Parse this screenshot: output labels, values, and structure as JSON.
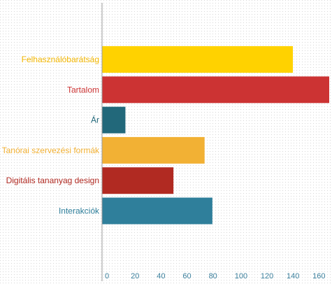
{
  "chart_data": {
    "type": "bar",
    "orientation": "horizontal",
    "categories": [
      "Felhasználóbarátság",
      "Tartalom",
      "Ár",
      "Tanórai szervezési formák",
      "Digitális tananyag design",
      "Interakciók"
    ],
    "values": [
      147,
      175,
      18,
      79,
      55,
      85
    ],
    "colors": [
      "#FFD200",
      "#CC3333",
      "#22687A",
      "#F2B134",
      "#B12A22",
      "#2F7F9B"
    ],
    "label_colors": [
      "#F2B600",
      "#CC3333",
      "#22687A",
      "#F2B134",
      "#B12A22",
      "#2F7F9B"
    ],
    "xlim": [
      0,
      175
    ],
    "xticks": [
      0,
      20,
      40,
      60,
      80,
      100,
      120,
      140,
      160
    ],
    "tick_labels": [
      "0",
      "20",
      "40",
      "60",
      "80",
      "100",
      "120",
      "140",
      "160"
    ],
    "grid": "dotted",
    "title": "",
    "xlabel": "",
    "ylabel": ""
  }
}
